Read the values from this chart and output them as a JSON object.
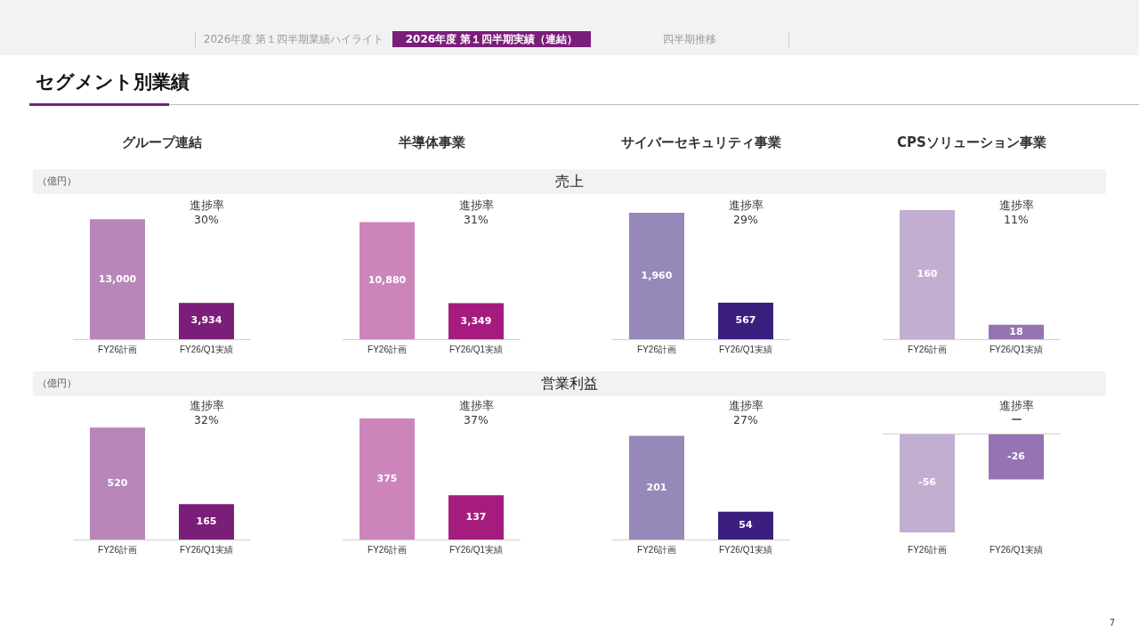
{
  "chart_data": [
    {
      "type": "bar",
      "title": "グループ連結",
      "ylabel": "（億円）",
      "categories": [
        "FY26計画",
        "FY26/Q1実績"
      ],
      "values": [
        13000,
        3934
      ],
      "colors": [
        "#b886b8",
        "#7b1e7a"
      ],
      "value_labels": [
        "13,000",
        "3,934"
      ],
      "tick_labels": "x",
      "annotations": [
        "進捗率",
        "30%",
        "2026年度 第１四半期業績ハイライト",
        "2026年度 第１四半期実績（連結）",
        "四半期推移",
        "セグメント別業績",
        "7",
        "売上"
      ]
    },
    {
      "type": "bar",
      "title": "半導体事業",
      "categories": [
        "FY26計画",
        "FY26/Q1実績"
      ],
      "values": [
        10880,
        3349
      ],
      "colors": [
        "#cc85bb",
        "#a51c7e"
      ],
      "value_labels": [
        "10,880",
        "3,349"
      ],
      "tick_labels": "x",
      "annotations": [
        "進捗率",
        "31%"
      ]
    },
    {
      "type": "bar",
      "title": "サイバーセキュリティ事業",
      "categories": [
        "FY26計画",
        "FY26/Q1実績"
      ],
      "values": [
        1960,
        567
      ],
      "colors": [
        "#9688b8",
        "#3b1f7e"
      ],
      "value_labels": [
        "1,960",
        "567"
      ],
      "tick_labels": "x",
      "annotations": [
        "進捗率",
        "29%"
      ]
    },
    {
      "type": "bar",
      "title": "CPSソリューション事業",
      "categories": [
        "FY26計画",
        "FY26/Q1実績"
      ],
      "values": [
        160,
        18
      ],
      "colors": [
        "#c1aed0",
        "#9673b5"
      ],
      "value_labels": [
        "160",
        "18"
      ],
      "tick_labels": "x",
      "annotations": [
        "進捗率",
        "11%"
      ]
    },
    {
      "type": "bar",
      "ylabel": "（億円）",
      "categories": [
        "FY26計画",
        "FY26/Q1実績"
      ],
      "values": [
        520,
        165
      ],
      "colors": [
        "#b886b8",
        "#7b1e7a"
      ],
      "value_labels": [
        "520",
        "165"
      ],
      "tick_labels": "x",
      "annotations": [
        "進捗率",
        "32%",
        "営業利益"
      ]
    },
    {
      "type": "bar",
      "categories": [
        "FY26計画",
        "FY26/Q1実績"
      ],
      "values": [
        375,
        137
      ],
      "colors": [
        "#cc85bb",
        "#a51c7e"
      ],
      "value_labels": [
        "375",
        "137"
      ],
      "tick_labels": "x",
      "annotations": [
        "進捗率",
        "37%"
      ]
    },
    {
      "type": "bar",
      "categories": [
        "FY26計画",
        "FY26/Q1実績"
      ],
      "values": [
        201,
        54
      ],
      "colors": [
        "#9688b8",
        "#3b1f7e"
      ],
      "value_labels": [
        "201",
        "54"
      ],
      "tick_labels": "x",
      "annotations": [
        "進捗率",
        "27%"
      ]
    },
    {
      "type": "bar",
      "categories": [
        "FY26計画",
        "FY26/Q1実績"
      ],
      "values": [
        -56,
        -26
      ],
      "colors": [
        "#c1aed0",
        "#9673b5"
      ],
      "value_labels": [
        "-56",
        "-26"
      ],
      "tick_labels": "x",
      "annotations": [
        "進捗率",
        "ー"
      ]
    }
  ]
}
